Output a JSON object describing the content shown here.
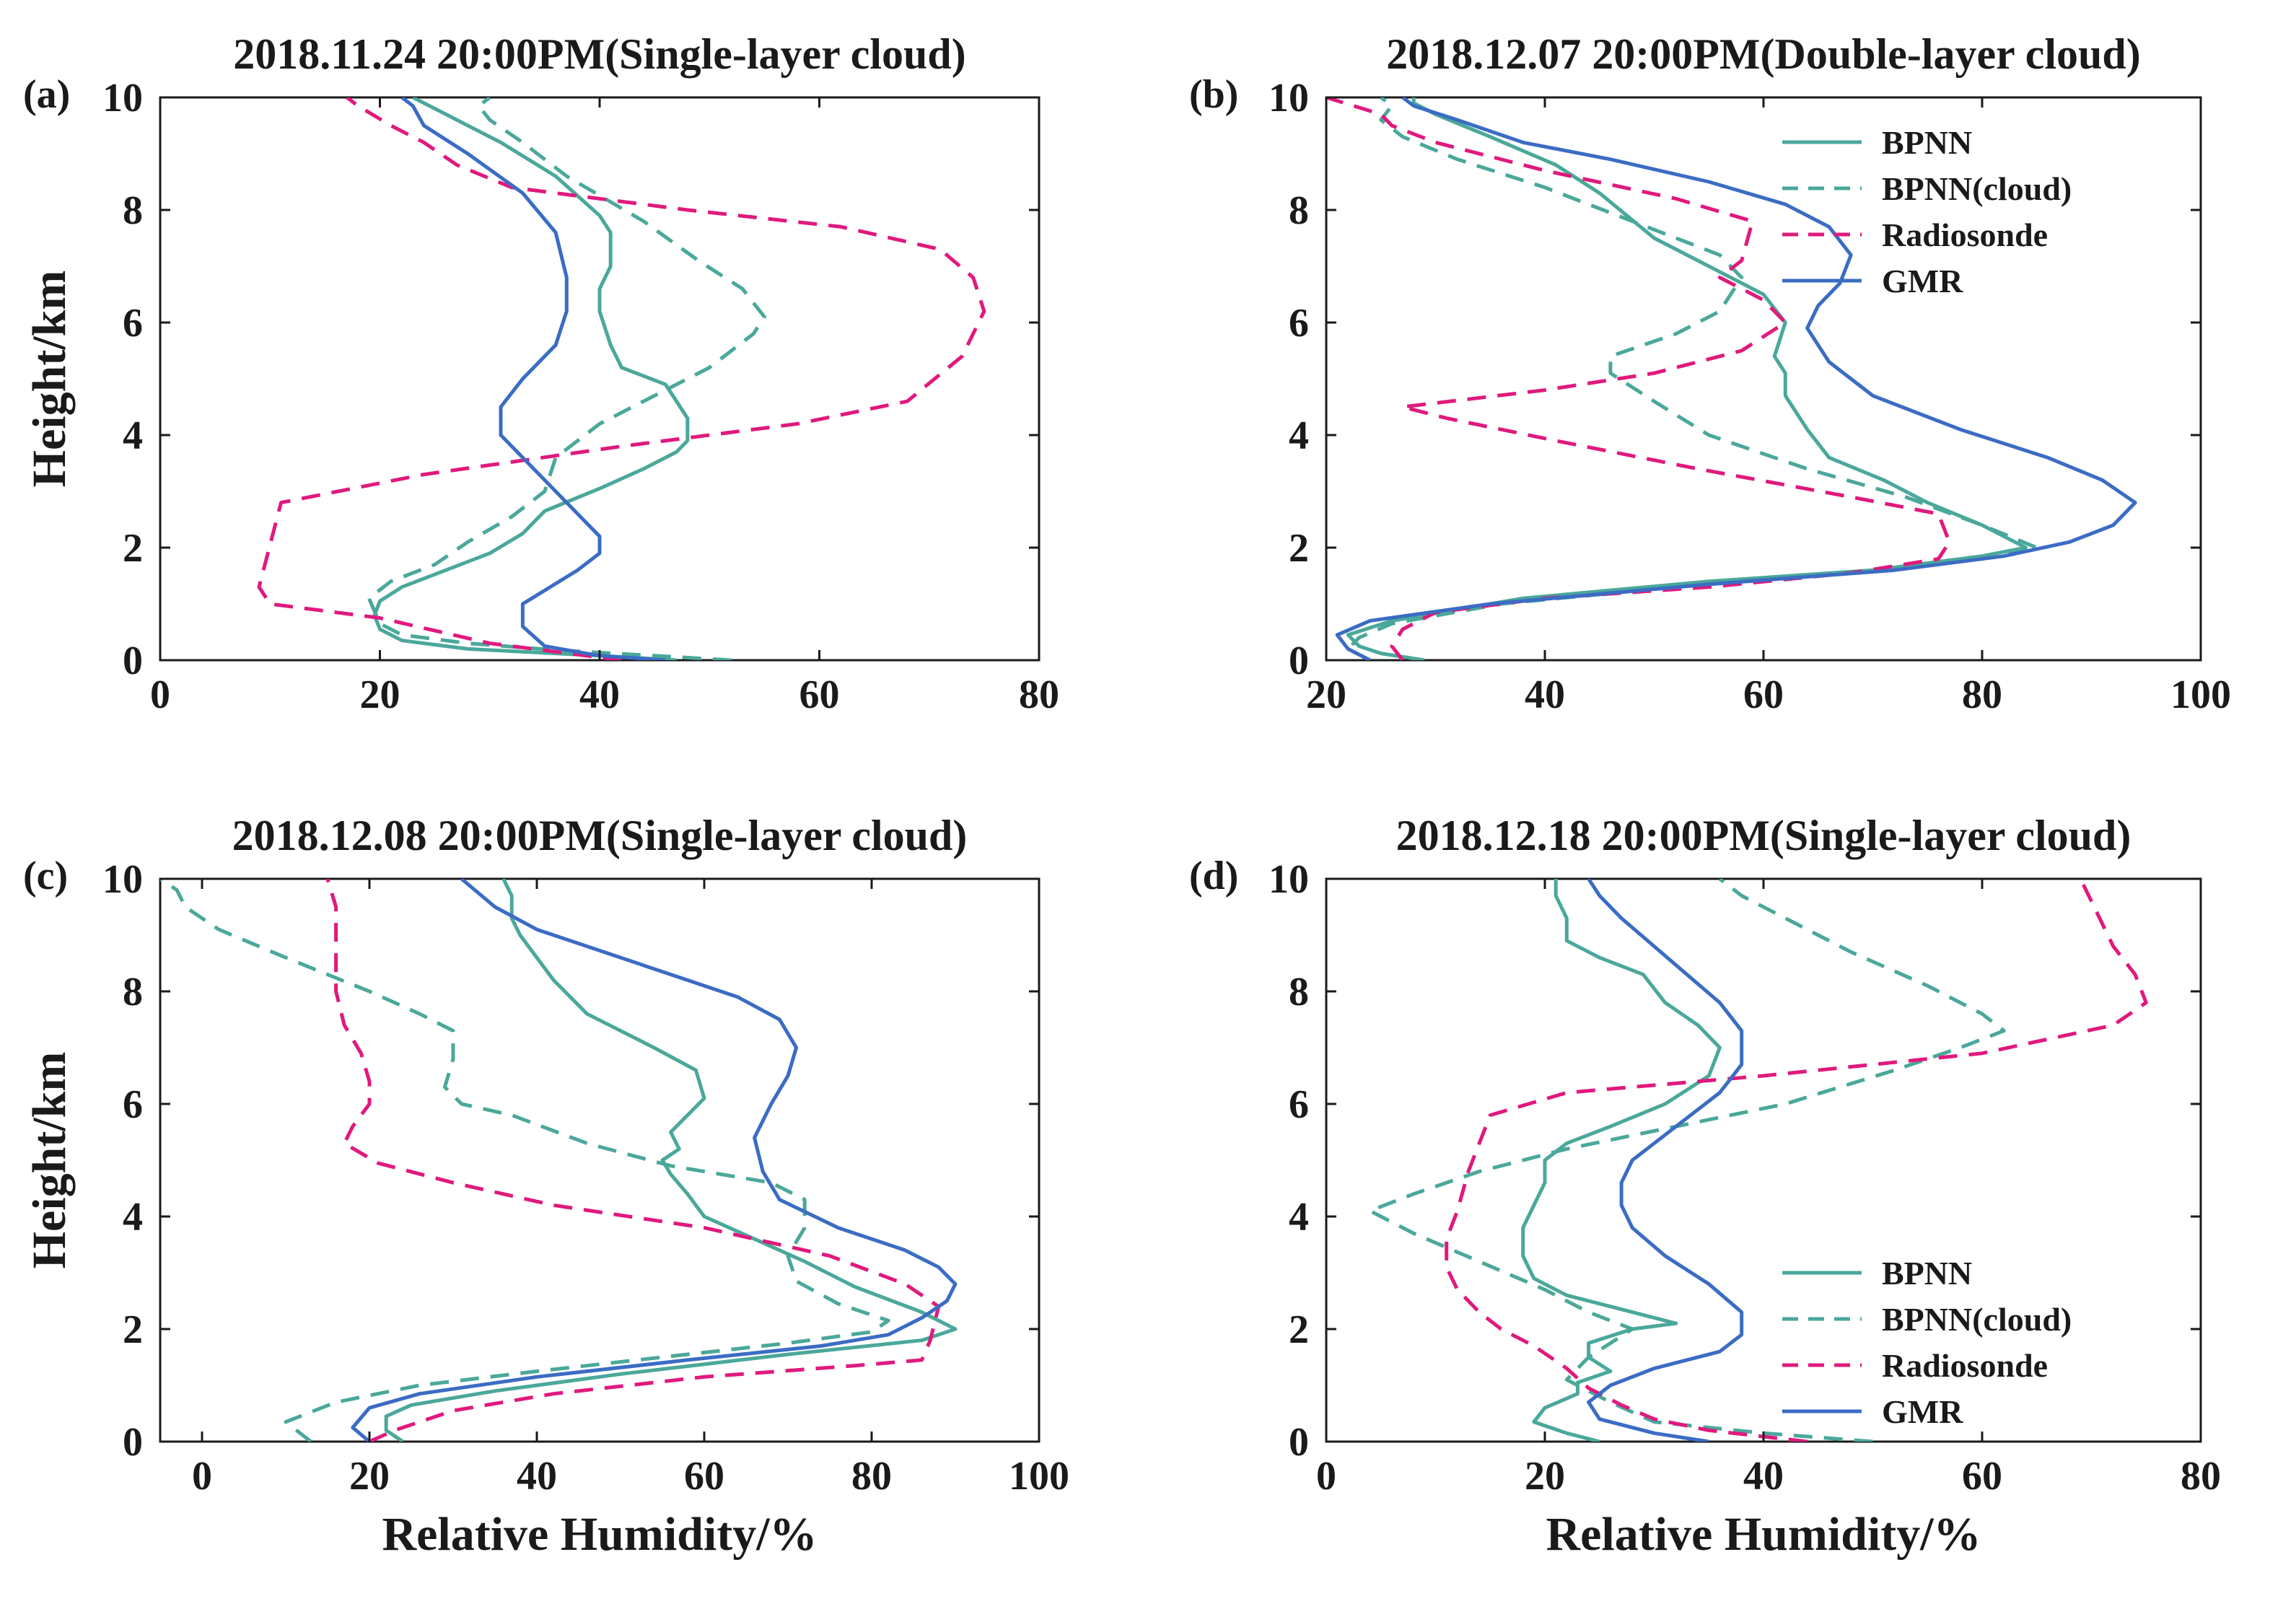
{
  "figure": {
    "y_axis_label": "Height/km",
    "x_axis_label": "Relative Humidity/%",
    "legend_entries": [
      "BPNN",
      "BPNN(cloud)",
      "Radiosonde",
      "GMR"
    ]
  },
  "series_styles": [
    {
      "name": "BPNN",
      "color": "#4aa89a",
      "dash": "solid"
    },
    {
      "name": "BPNN(cloud)",
      "color": "#4aa89a",
      "dash": "dashed"
    },
    {
      "name": "Radiosonde",
      "color": "#e0197d",
      "dash": "dashed"
    },
    {
      "name": "GMR",
      "color": "#3b6cc4",
      "dash": "solid"
    }
  ],
  "chart_data": [
    {
      "type": "line",
      "panel_label": "(a)",
      "title": "2018.11.24 20:00PM(Single-layer cloud)",
      "xlabel": "",
      "ylabel": "Height/km",
      "xlim": [
        0,
        80
      ],
      "ylim": [
        0,
        10
      ],
      "xticks": [
        0,
        20,
        40,
        60,
        80
      ],
      "yticks": [
        0,
        2,
        4,
        6,
        8,
        10
      ],
      "show_legend": false,
      "series": [
        {
          "name": "BPNN",
          "x": [
            47,
            40,
            28,
            22,
            20,
            19.5,
            20,
            22,
            26,
            30,
            33,
            35,
            40,
            44,
            47,
            48,
            48,
            46,
            42,
            41,
            40,
            40,
            41,
            41,
            40,
            36,
            31,
            26,
            23
          ],
          "y": [
            0,
            0.08,
            0.2,
            0.35,
            0.55,
            0.8,
            1.05,
            1.3,
            1.6,
            1.9,
            2.25,
            2.65,
            3.05,
            3.4,
            3.7,
            3.9,
            4.3,
            4.9,
            5.2,
            5.6,
            6.2,
            6.6,
            7.0,
            7.6,
            7.9,
            8.6,
            9.2,
            9.7,
            10
          ]
        },
        {
          "name": "BPNN(cloud)",
          "x": [
            52,
            45,
            36,
            28,
            22,
            20,
            19,
            21,
            25,
            28,
            32,
            35,
            36,
            40,
            45,
            50,
            54,
            55,
            53,
            49,
            44,
            37,
            33,
            30,
            29,
            30
          ],
          "y": [
            0,
            0.08,
            0.18,
            0.3,
            0.45,
            0.65,
            1.1,
            1.4,
            1.7,
            2.1,
            2.55,
            3.0,
            3.6,
            4.2,
            4.7,
            5.2,
            5.8,
            6.1,
            6.6,
            7.1,
            7.8,
            8.6,
            9.2,
            9.6,
            9.85,
            10
          ]
        },
        {
          "name": "Radiosonde",
          "x": [
            42,
            30,
            20,
            10,
            9,
            11,
            24,
            42,
            58,
            68,
            73,
            75,
            74,
            71,
            62,
            48,
            32,
            27,
            24,
            21,
            18,
            17
          ],
          "y": [
            0,
            0.3,
            0.75,
            1.0,
            1.3,
            2.8,
            3.3,
            3.8,
            4.2,
            4.6,
            5.4,
            6.2,
            6.8,
            7.3,
            7.7,
            8.0,
            8.4,
            8.8,
            9.2,
            9.5,
            9.85,
            10
          ]
        },
        {
          "name": "GMR",
          "x": [
            46,
            40,
            35,
            33,
            33,
            38,
            40,
            40,
            35,
            31,
            31,
            33,
            36,
            37,
            37,
            36,
            33,
            28,
            24,
            23,
            22
          ],
          "y": [
            0,
            0.08,
            0.25,
            0.6,
            1.0,
            1.6,
            1.9,
            2.2,
            3.2,
            4.0,
            4.5,
            5.0,
            5.6,
            6.2,
            6.8,
            7.6,
            8.3,
            9.0,
            9.5,
            9.85,
            10
          ]
        }
      ]
    },
    {
      "type": "line",
      "panel_label": "(b)",
      "title": "2018.12.07 20:00PM(Double-layer cloud)",
      "xlabel": "",
      "ylabel": "",
      "xlim": [
        20,
        100
      ],
      "ylim": [
        0,
        10
      ],
      "xticks": [
        20,
        40,
        60,
        80,
        100
      ],
      "yticks": [
        0,
        2,
        4,
        6,
        8,
        10
      ],
      "show_legend": true,
      "legend_position": "top-right",
      "series": [
        {
          "name": "BPNN",
          "x": [
            29,
            25,
            23,
            22,
            26,
            38,
            55,
            70,
            80,
            84,
            80,
            75,
            71,
            66,
            64,
            62,
            62,
            61,
            62,
            60,
            55,
            50,
            45,
            41,
            35,
            30,
            28,
            28
          ],
          "y": [
            0,
            0.12,
            0.25,
            0.45,
            0.7,
            1.1,
            1.4,
            1.6,
            1.85,
            2.0,
            2.4,
            2.8,
            3.2,
            3.6,
            4.1,
            4.7,
            5.1,
            5.4,
            6.0,
            6.5,
            7.0,
            7.5,
            8.3,
            8.8,
            9.3,
            9.7,
            9.9,
            10
          ]
        },
        {
          "name": "BPNN(cloud)",
          "x": [
            24,
            22,
            23,
            26,
            36,
            52,
            68,
            80,
            85,
            80,
            73,
            64,
            55,
            50,
            46,
            46,
            52,
            56,
            58,
            56,
            48,
            40,
            32,
            27,
            25,
            26,
            25
          ],
          "y": [
            0,
            0.2,
            0.4,
            0.65,
            1.0,
            1.3,
            1.55,
            1.8,
            2.0,
            2.4,
            2.9,
            3.4,
            4.0,
            4.6,
            5.1,
            5.4,
            5.8,
            6.2,
            6.8,
            7.2,
            7.8,
            8.4,
            8.9,
            9.3,
            9.6,
            9.85,
            10
          ]
        },
        {
          "name": "Radiosonde",
          "x": [
            27,
            26,
            27,
            30,
            40,
            55,
            68,
            76,
            77,
            76,
            68,
            54,
            41,
            31,
            27,
            40,
            50,
            58,
            62,
            60,
            56,
            58,
            59,
            52,
            40,
            30,
            26,
            25,
            20
          ],
          "y": [
            0,
            0.25,
            0.55,
            0.85,
            1.1,
            1.3,
            1.55,
            1.8,
            2.1,
            2.6,
            2.9,
            3.4,
            3.9,
            4.3,
            4.5,
            4.8,
            5.1,
            5.5,
            6.0,
            6.4,
            6.8,
            7.1,
            7.8,
            8.2,
            8.7,
            9.2,
            9.5,
            9.7,
            10
          ]
        },
        {
          "name": "GMR",
          "x": [
            24,
            22,
            21,
            24,
            35,
            55,
            72,
            82,
            88,
            92,
            94,
            91,
            86,
            78,
            70,
            66,
            64,
            65,
            67,
            68,
            66,
            62,
            55,
            46,
            38,
            32,
            28,
            27
          ],
          "y": [
            0,
            0.2,
            0.45,
            0.7,
            1.0,
            1.35,
            1.6,
            1.85,
            2.1,
            2.4,
            2.8,
            3.2,
            3.6,
            4.1,
            4.7,
            5.3,
            5.9,
            6.3,
            6.7,
            7.2,
            7.7,
            8.1,
            8.5,
            8.9,
            9.2,
            9.6,
            9.85,
            10
          ]
        }
      ]
    },
    {
      "type": "line",
      "panel_label": "(c)",
      "title": "2018.12.08 20:00PM(Single-layer cloud)",
      "xlabel": "Relative Humidity/%",
      "ylabel": "Height/km",
      "xlim": [
        -5,
        100
      ],
      "ylim": [
        0,
        10
      ],
      "xticks": [
        0,
        20,
        40,
        60,
        80,
        100
      ],
      "yticks": [
        0,
        2,
        4,
        6,
        8,
        10
      ],
      "show_legend": false,
      "series": [
        {
          "name": "BPNN",
          "x": [
            24,
            22,
            22,
            25,
            35,
            50,
            70,
            86,
            90,
            86,
            78,
            72,
            66,
            60,
            58,
            56,
            55,
            57,
            56,
            58,
            60,
            59,
            54,
            46,
            42,
            40,
            38,
            37,
            37,
            36
          ],
          "y": [
            0,
            0.2,
            0.45,
            0.65,
            0.9,
            1.2,
            1.55,
            1.8,
            2.0,
            2.3,
            2.75,
            3.2,
            3.6,
            4.0,
            4.4,
            4.75,
            5.0,
            5.2,
            5.5,
            5.8,
            6.1,
            6.6,
            7.0,
            7.6,
            8.2,
            8.6,
            9.0,
            9.3,
            9.7,
            10
          ]
        },
        {
          "name": "BPNN(cloud)",
          "x": [
            13,
            10,
            16,
            26,
            40,
            55,
            70,
            80,
            82,
            76,
            71,
            70,
            72,
            72,
            68,
            56,
            46,
            37,
            31,
            29,
            30,
            30,
            26,
            20,
            10,
            2,
            -2,
            -3,
            -5
          ],
          "y": [
            0,
            0.35,
            0.7,
            1.0,
            1.25,
            1.5,
            1.75,
            1.95,
            2.15,
            2.45,
            2.85,
            3.3,
            3.8,
            4.3,
            4.6,
            4.9,
            5.3,
            5.8,
            6.0,
            6.3,
            6.8,
            7.3,
            7.6,
            8.0,
            8.6,
            9.1,
            9.5,
            9.8,
            10
          ]
        },
        {
          "name": "Radiosonde",
          "x": [
            20,
            23,
            30,
            42,
            60,
            78,
            86,
            87,
            88,
            84,
            75,
            60,
            42,
            30,
            21,
            17,
            18,
            20,
            20,
            19,
            17,
            16,
            16,
            16,
            15
          ],
          "y": [
            0,
            0.2,
            0.55,
            0.85,
            1.15,
            1.35,
            1.45,
            1.8,
            2.4,
            2.8,
            3.3,
            3.8,
            4.2,
            4.6,
            4.95,
            5.3,
            5.6,
            6.0,
            6.4,
            6.9,
            7.4,
            8.0,
            8.8,
            9.5,
            10
          ]
        },
        {
          "name": "GMR",
          "x": [
            20,
            18,
            20,
            26,
            40,
            58,
            74,
            82,
            86,
            89,
            90,
            88,
            84,
            76,
            69,
            67,
            66,
            68,
            70,
            71,
            69,
            64,
            56,
            48,
            40,
            35,
            31
          ],
          "y": [
            0,
            0.25,
            0.6,
            0.85,
            1.15,
            1.45,
            1.7,
            1.9,
            2.2,
            2.5,
            2.8,
            3.1,
            3.4,
            3.8,
            4.3,
            4.8,
            5.4,
            6.0,
            6.5,
            7.0,
            7.5,
            7.9,
            8.3,
            8.7,
            9.1,
            9.5,
            10
          ]
        }
      ]
    },
    {
      "type": "line",
      "panel_label": "(d)",
      "title": "2018.12.18 20:00PM(Single-layer cloud)",
      "xlabel": "Relative Humidity/%",
      "ylabel": "",
      "xlim": [
        0,
        80
      ],
      "ylim": [
        0,
        10
      ],
      "xticks": [
        0,
        20,
        40,
        60,
        80
      ],
      "yticks": [
        0,
        2,
        4,
        6,
        8,
        10
      ],
      "show_legend": true,
      "legend_position": "bottom-right",
      "series": [
        {
          "name": "BPNN",
          "x": [
            25,
            22,
            19,
            20,
            23,
            23,
            26,
            24,
            24,
            28,
            32,
            28,
            22,
            19,
            18,
            18,
            19,
            20,
            20,
            22,
            26,
            31,
            35,
            36,
            34,
            31,
            29,
            25,
            22,
            22,
            21,
            21
          ],
          "y": [
            0,
            0.15,
            0.35,
            0.6,
            0.85,
            1.05,
            1.25,
            1.5,
            1.75,
            2.0,
            2.1,
            2.3,
            2.6,
            2.9,
            3.3,
            3.8,
            4.2,
            4.6,
            5.0,
            5.3,
            5.6,
            6.0,
            6.5,
            7.0,
            7.4,
            7.8,
            8.3,
            8.6,
            8.9,
            9.3,
            9.7,
            10
          ]
        },
        {
          "name": "BPNN(cloud)",
          "x": [
            50,
            40,
            30,
            26,
            22,
            24,
            28,
            24,
            20,
            14,
            8,
            4,
            8,
            14,
            22,
            32,
            42,
            52,
            58,
            62,
            60,
            55,
            48,
            42,
            38,
            36
          ],
          "y": [
            0,
            0.15,
            0.35,
            0.7,
            1.1,
            1.5,
            2.0,
            2.3,
            2.7,
            3.2,
            3.7,
            4.1,
            4.4,
            4.8,
            5.2,
            5.6,
            6.0,
            6.6,
            7.0,
            7.3,
            7.6,
            8.1,
            8.7,
            9.3,
            9.7,
            10
          ]
        },
        {
          "name": "Radiosonde",
          "x": [
            44,
            35,
            30,
            27,
            24,
            22,
            19,
            16,
            14,
            12,
            11,
            11,
            12,
            13,
            14,
            15,
            22,
            40,
            60,
            72,
            75,
            74,
            72,
            71,
            70,
            69
          ],
          "y": [
            0,
            0.2,
            0.4,
            0.65,
            0.95,
            1.3,
            1.7,
            2.0,
            2.3,
            2.7,
            3.1,
            3.6,
            4.1,
            4.8,
            5.3,
            5.8,
            6.2,
            6.5,
            6.9,
            7.4,
            7.8,
            8.3,
            8.8,
            9.2,
            9.6,
            10
          ]
        },
        {
          "name": "GMR",
          "x": [
            35,
            30,
            25,
            24,
            26,
            30,
            36,
            38,
            38,
            35,
            31,
            28,
            27,
            27,
            28,
            32,
            36,
            38,
            38,
            36,
            33,
            30,
            27,
            25,
            24
          ],
          "y": [
            0,
            0.15,
            0.4,
            0.7,
            1.0,
            1.3,
            1.6,
            1.9,
            2.3,
            2.8,
            3.3,
            3.8,
            4.2,
            4.6,
            5.0,
            5.6,
            6.2,
            6.7,
            7.3,
            7.8,
            8.3,
            8.8,
            9.3,
            9.7,
            10
          ]
        }
      ]
    }
  ]
}
